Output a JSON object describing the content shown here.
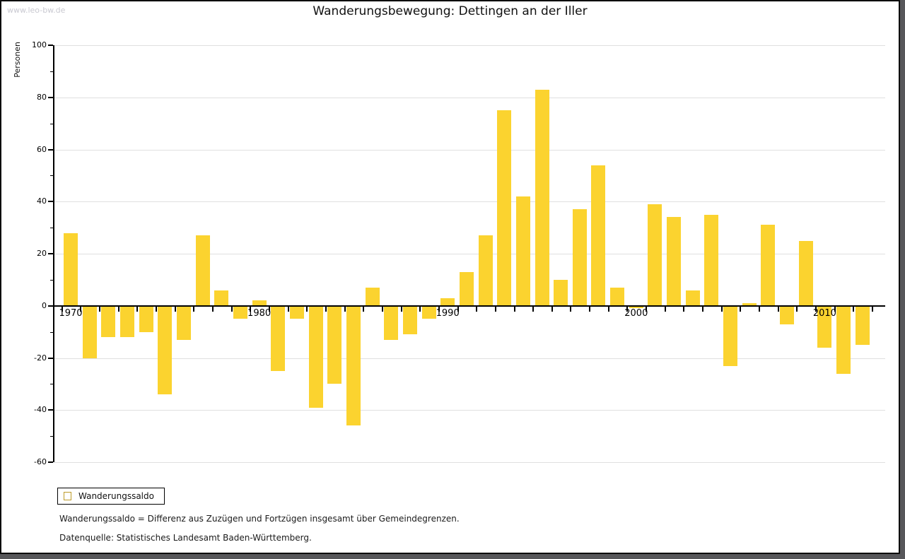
{
  "watermark": "www.leo-bw.de",
  "chart_data": {
    "type": "bar",
    "title": "Wanderungsbewegung: Dettingen an der Iller",
    "xlabel": "",
    "ylabel": "Personen",
    "ylim": [
      -60,
      100
    ],
    "ytick_step": 20,
    "ytick_minor_step": 10,
    "grid": true,
    "legend_position": "bottom-left",
    "bar_color": "#fbd32f",
    "categories": [
      1970,
      1971,
      1972,
      1973,
      1974,
      1975,
      1976,
      1977,
      1978,
      1979,
      1980,
      1981,
      1982,
      1983,
      1984,
      1985,
      1986,
      1987,
      1988,
      1989,
      1990,
      1991,
      1992,
      1993,
      1994,
      1995,
      1996,
      1997,
      1998,
      1999,
      2000,
      2001,
      2002,
      2003,
      2004,
      2005,
      2006,
      2007,
      2008,
      2009,
      2010,
      2011,
      2012
    ],
    "series": [
      {
        "name": "Wanderungssaldo",
        "color": "#fbd32f",
        "values": [
          28,
          -20,
          -12,
          -12,
          -10,
          -34,
          -13,
          27,
          6,
          -5,
          2,
          -25,
          -5,
          -39,
          -30,
          -46,
          7,
          -13,
          -11,
          -5,
          3,
          13,
          27,
          75,
          42,
          83,
          10,
          37,
          54,
          7,
          -1,
          39,
          34,
          6,
          35,
          -23,
          1,
          31,
          -7,
          25,
          -16,
          -26,
          -15
        ]
      }
    ],
    "xtick_decade_labels": [
      "1970",
      "1980",
      "1990",
      "2000",
      "2010"
    ]
  },
  "footnotes": [
    "Wanderungssaldo = Differenz aus Zuzügen und Fortzügen insgesamt über Gemeindegrenzen.",
    "Datenquelle: Statistisches Landesamt Baden-Württemberg."
  ]
}
